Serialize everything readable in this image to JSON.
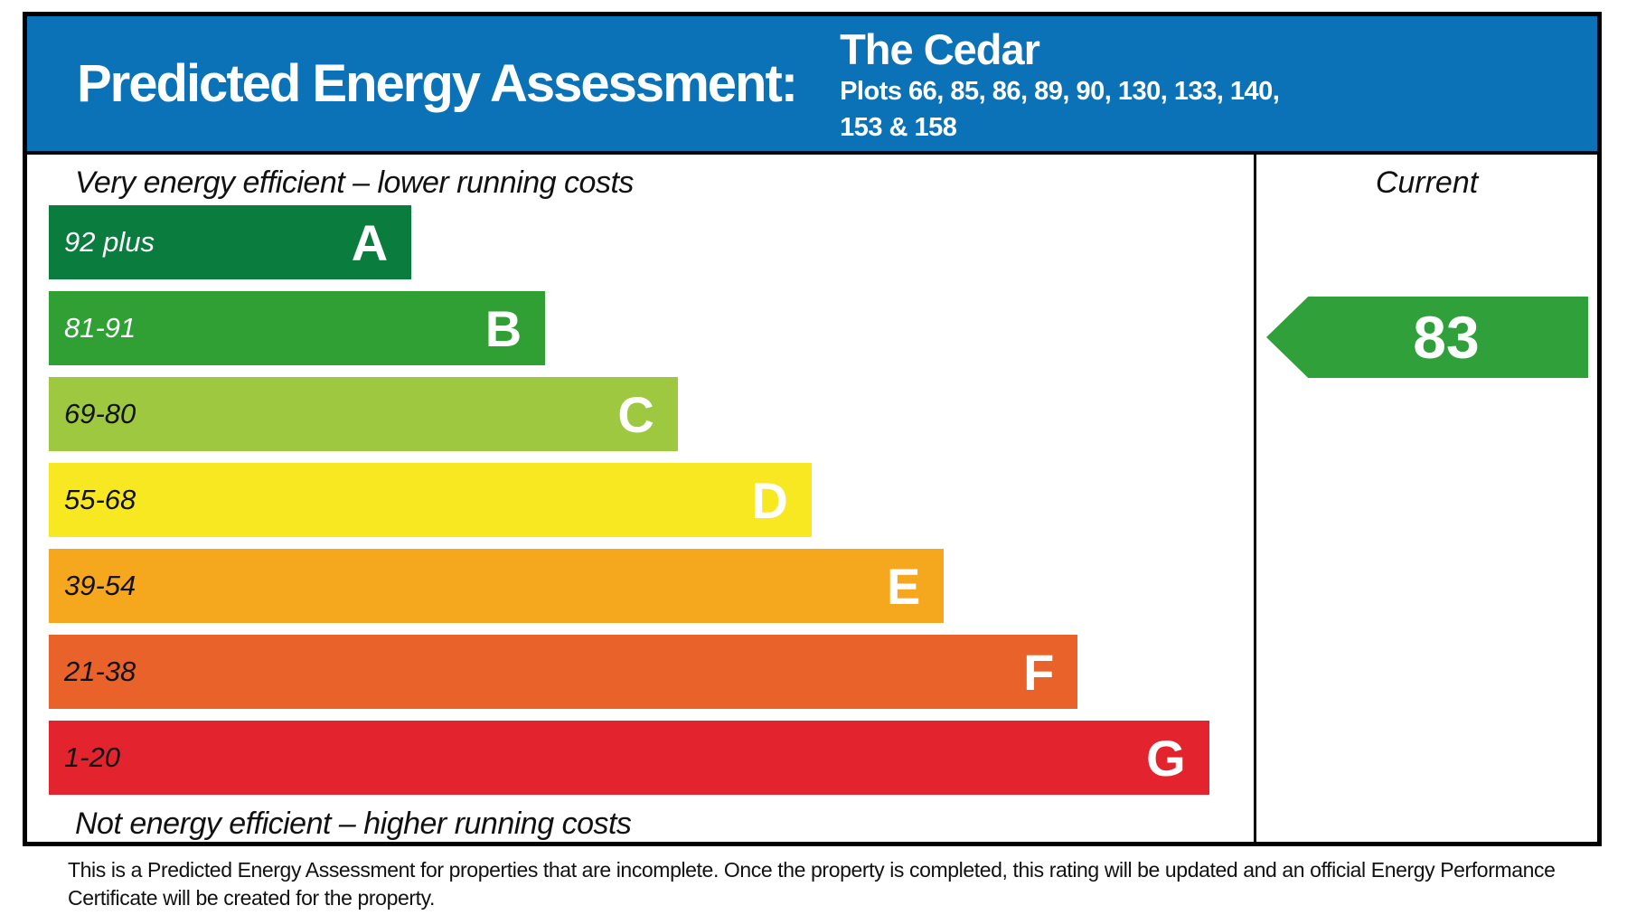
{
  "header": {
    "title": "Predicted Energy Assessment:",
    "property_name": "The Cedar",
    "plots_line1": "Plots 66, 85, 86, 89, 90, 130, 133, 140,",
    "plots_line2": "153 & 158"
  },
  "colors": {
    "header_bg": "#0c72b8",
    "border": "#000000"
  },
  "chart_data": {
    "type": "bar",
    "title": "Predicted Energy Assessment",
    "top_caption": "Very energy efficient – lower running costs",
    "bottom_caption": "Not energy efficient – higher running costs",
    "current_label": "Current",
    "current_rating": 83,
    "current_band": "B",
    "categories": [
      "A",
      "B",
      "C",
      "D",
      "E",
      "F",
      "G"
    ],
    "bands": [
      {
        "letter": "A",
        "range": "92 plus",
        "color": "#0a7d3e",
        "range_text_color": "#ffffff",
        "width_pct": 30.1
      },
      {
        "letter": "B",
        "range": "81-91",
        "color": "#30a035",
        "range_text_color": "#ffffff",
        "width_pct": 41.2
      },
      {
        "letter": "C",
        "range": "69-80",
        "color": "#9dc83f",
        "range_text_color": "#111111",
        "width_pct": 52.2
      },
      {
        "letter": "D",
        "range": "55-68",
        "color": "#f7e822",
        "range_text_color": "#111111",
        "width_pct": 63.3
      },
      {
        "letter": "E",
        "range": "39-54",
        "color": "#f5a71e",
        "range_text_color": "#111111",
        "width_pct": 74.3
      },
      {
        "letter": "F",
        "range": "21-38",
        "color": "#e8622a",
        "range_text_color": "#111111",
        "width_pct": 85.4
      },
      {
        "letter": "G",
        "range": "1-20",
        "color": "#e3242e",
        "range_text_color": "#111111",
        "width_pct": 96.3
      }
    ],
    "arrow": {
      "color": "#2fa03a",
      "band_index": 1
    }
  },
  "footer": {
    "line1": "This is a Predicted Energy Assessment for properties that are incomplete. Once the property is completed, this rating will be updated and an official Energy Performance",
    "line2": "Certificate will be created for the property."
  }
}
